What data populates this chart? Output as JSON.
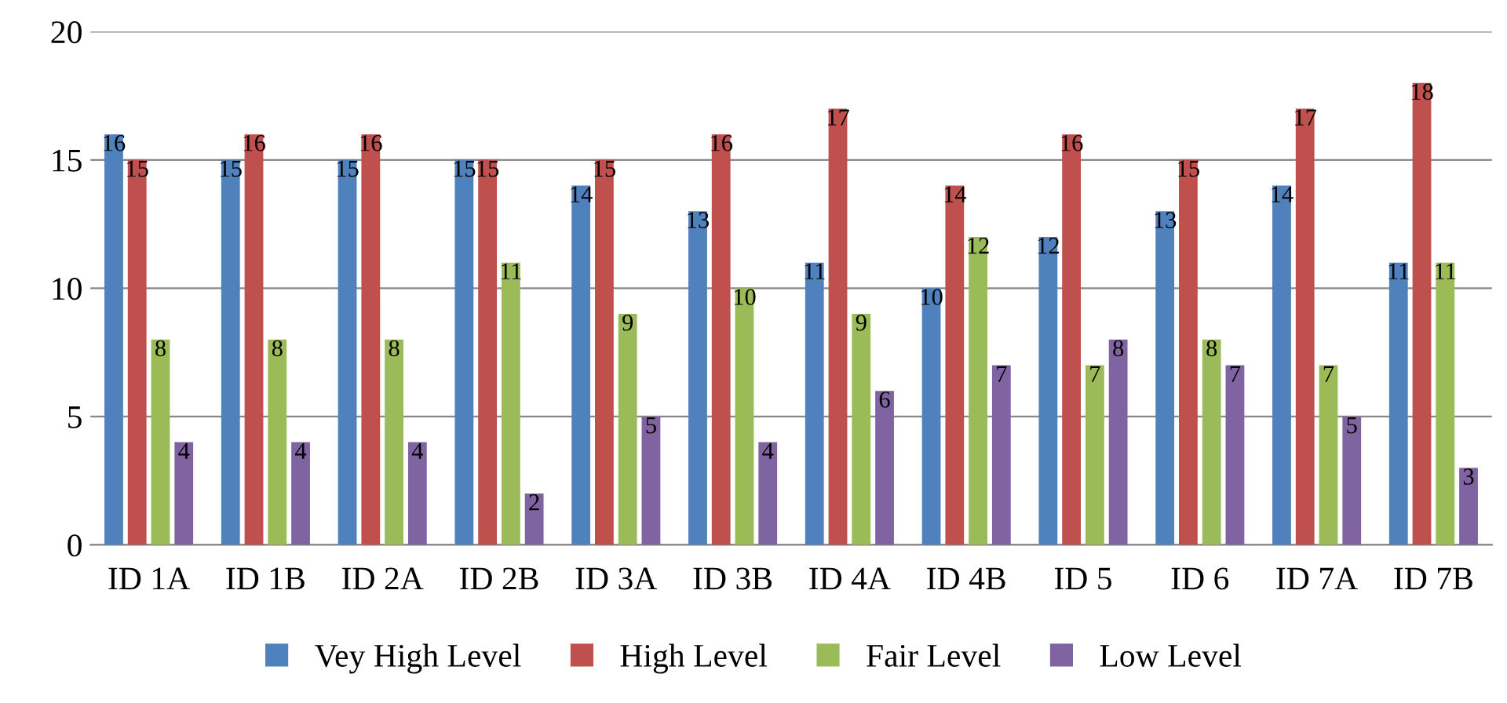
{
  "chart_data": {
    "type": "bar",
    "categories": [
      "ID 1A",
      "ID 1B",
      "ID 2A",
      "ID 2B",
      "ID 3A",
      "ID 3B",
      "ID 4A",
      "ID 4B",
      "ID 5",
      "ID 6",
      "ID 7A",
      "ID 7B"
    ],
    "series": [
      {
        "name": "Vey High Level",
        "color": "#4f81bd",
        "values": [
          16,
          15,
          15,
          15,
          14,
          13,
          11,
          10,
          12,
          13,
          14,
          11
        ]
      },
      {
        "name": "High Level",
        "color": "#c0504d",
        "values": [
          15,
          16,
          16,
          15,
          15,
          16,
          17,
          14,
          16,
          15,
          17,
          18
        ]
      },
      {
        "name": "Fair Level",
        "color": "#9bbb59",
        "values": [
          8,
          8,
          8,
          11,
          9,
          10,
          9,
          12,
          7,
          8,
          7,
          11
        ]
      },
      {
        "name": "Low Level",
        "color": "#8064a2",
        "values": [
          4,
          4,
          4,
          2,
          5,
          4,
          6,
          7,
          8,
          7,
          5,
          3
        ]
      }
    ],
    "ylim": [
      0,
      20
    ],
    "yticks": [
      0,
      5,
      10,
      15,
      20
    ],
    "grid": "y",
    "legend": "bottom",
    "data_labels": true
  }
}
